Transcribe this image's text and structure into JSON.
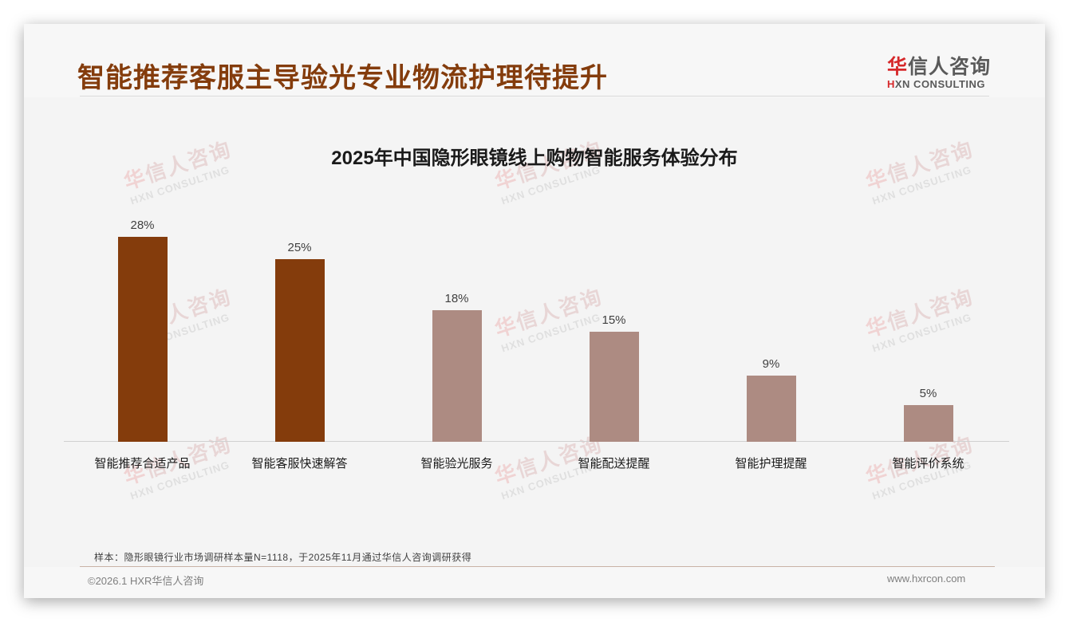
{
  "header": {
    "title": "智能推荐客服主导验光专业物流护理待提升",
    "logo_cn_first": "华",
    "logo_cn_rest": "信人咨询",
    "logo_en_first": "H",
    "logo_en_rest": "XN CONSULTING"
  },
  "watermark": {
    "cn_first": "华",
    "cn_rest": "信人咨询",
    "en": "HXN CONSULTING"
  },
  "colors": {
    "title": "#843c0c",
    "bar_highlight": "#843c0c",
    "bar_muted": "#ad8b82",
    "logo_red": "#d6282a"
  },
  "chart_data": {
    "type": "bar",
    "title": "2025年中国隐形眼镜线上购物智能服务体验分布",
    "categories": [
      "智能推荐合适产品",
      "智能客服快速解答",
      "智能验光服务",
      "智能配送提醒",
      "智能护理提醒",
      "智能评价系统"
    ],
    "values": [
      28,
      25,
      18,
      15,
      9,
      5
    ],
    "value_labels": [
      "28%",
      "25%",
      "18%",
      "15%",
      "9%",
      "5%"
    ],
    "bar_colors": [
      "#843c0c",
      "#843c0c",
      "#ad8b82",
      "#ad8b82",
      "#ad8b82",
      "#ad8b82"
    ],
    "unit": "%",
    "xlabel": "",
    "ylabel": "",
    "ylim": [
      0,
      30
    ],
    "grid": false,
    "legend": null
  },
  "footer": {
    "sample_note": "样本：隐形眼镜行业市场调研样本量N=1118，于2025年11月通过华信人咨询调研获得",
    "copyright": "©2026.1 HXR华信人咨询",
    "website": "www.hxrcon.com"
  }
}
